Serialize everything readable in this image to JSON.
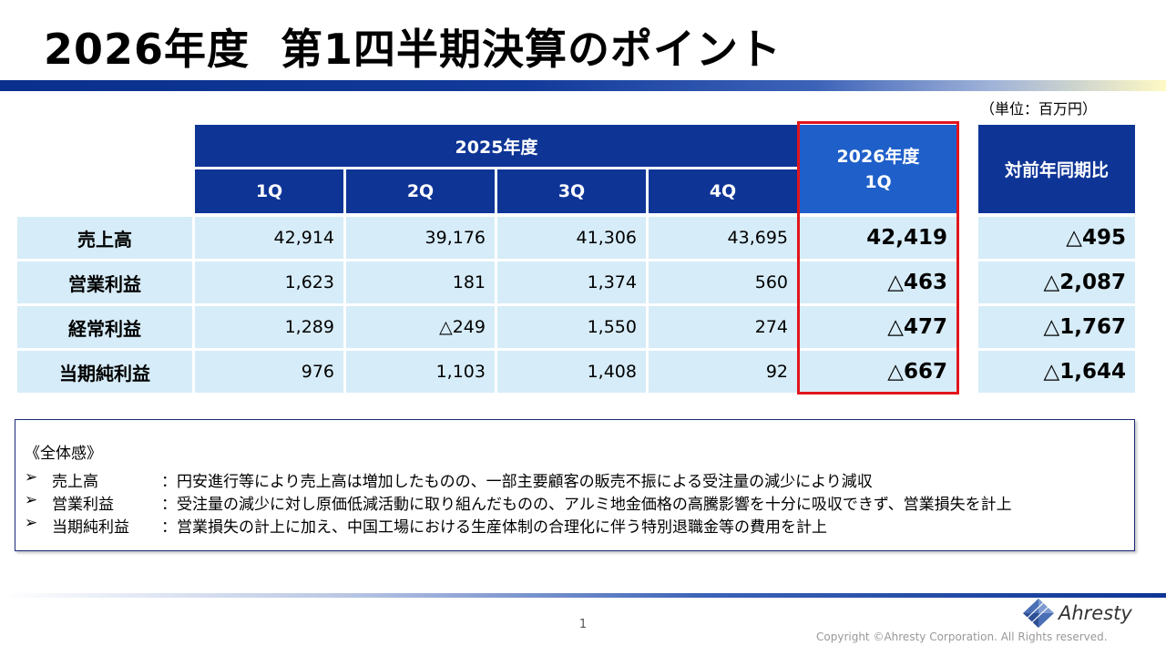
{
  "title": {
    "part1": "2026年度",
    "part2": "第1四半期決算のポイント"
  },
  "unit_note": "（単位：百万円）",
  "table": {
    "group_header": "2025年度",
    "quarters": [
      "1Q",
      "2Q",
      "3Q",
      "4Q"
    ],
    "current_header_line1": "2026年度",
    "current_header_line2": "1Q",
    "yoy_header": "対前年同期比",
    "rows": [
      {
        "label": "売上高",
        "q1": "42,914",
        "q2": "39,176",
        "q3": "41,306",
        "q4": "43,695",
        "current": "42,419",
        "yoy": "△495"
      },
      {
        "label": "営業利益",
        "q1": "1,623",
        "q2": "181",
        "q3": "1,374",
        "q4": "560",
        "current": "△463",
        "yoy": "△2,087"
      },
      {
        "label": "経常利益",
        "q1": "1,289",
        "q2": "△249",
        "q3": "1,550",
        "q4": "274",
        "current": "△477",
        "yoy": "△1,767"
      },
      {
        "label": "当期純利益",
        "q1": "976",
        "q2": "1,103",
        "q3": "1,408",
        "q4": "92",
        "current": "△667",
        "yoy": "△1,644"
      }
    ]
  },
  "summary": {
    "heading": "《全体感》",
    "bullet_glyph": "➢",
    "items": [
      {
        "label": "売上高",
        "text": "：円安進行等により売上高は増加したものの、一部主要顧客の販売不振による受注量の減少により減収"
      },
      {
        "label": "営業利益",
        "text": "：受注量の減少に対し原価低減活動に取り組んだものの、アルミ地金価格の高騰影響を十分に吸収できず、営業損失を計上"
      },
      {
        "label": "当期純利益",
        "text": "：営業損失の計上に加え、中国工場における生産体制の合理化に伴う特別退職金等の費用を計上"
      }
    ]
  },
  "footer": {
    "page_number": "1",
    "logo_text": "Ahresty",
    "copyright": "Copyright ©Ahresty Corporation. All Rights reserved."
  },
  "colors": {
    "header_dark": "#0e3596",
    "header_light": "#1f5fc9",
    "cell_bg": "#d6ecf8",
    "highlight": "#e2151d"
  }
}
